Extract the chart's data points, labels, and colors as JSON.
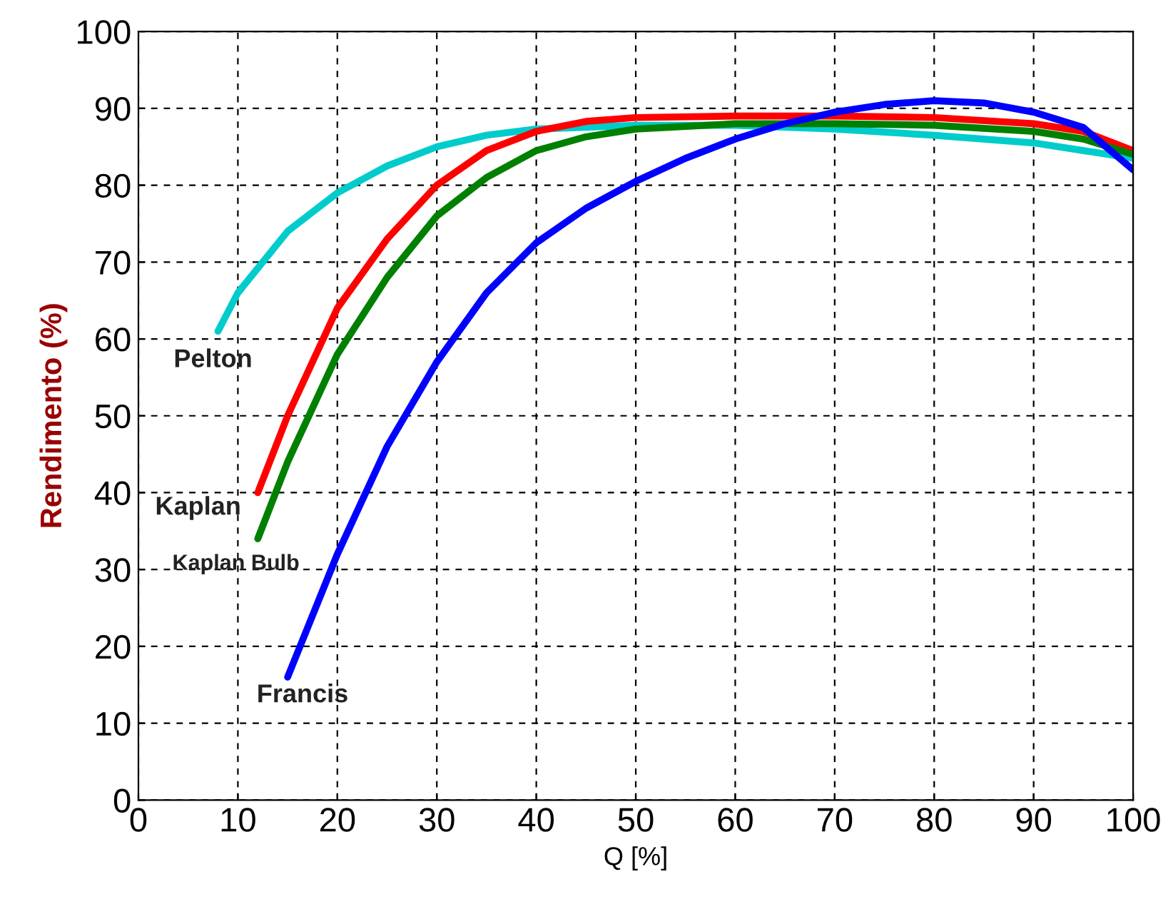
{
  "chart_data": {
    "type": "line",
    "xlabel": "Q [%]",
    "ylabel": "Rendimento (%)",
    "xlim": [
      0,
      100
    ],
    "ylim": [
      0,
      100
    ],
    "xticks": [
      0,
      10,
      20,
      30,
      40,
      50,
      60,
      70,
      80,
      90,
      100
    ],
    "yticks": [
      0,
      10,
      20,
      30,
      40,
      50,
      60,
      70,
      80,
      90,
      100
    ],
    "grid": true,
    "legend": false,
    "line_style": "solid",
    "marker": "none",
    "series": [
      {
        "name": "Pelton",
        "color": "#00cccc",
        "x": [
          8,
          10,
          15,
          20,
          25,
          30,
          35,
          40,
          50,
          60,
          70,
          80,
          90,
          100
        ],
        "values": [
          61,
          66,
          74,
          79,
          82.5,
          85,
          86.5,
          87.3,
          87.8,
          87.8,
          87.3,
          86.5,
          85.5,
          83.5
        ]
      },
      {
        "name": "Kaplan",
        "color": "#ff0000",
        "x": [
          12,
          15,
          20,
          25,
          30,
          35,
          40,
          45,
          50,
          60,
          70,
          80,
          90,
          95,
          100
        ],
        "values": [
          40,
          50,
          64,
          73,
          80,
          84.5,
          87,
          88.3,
          88.8,
          89,
          89,
          88.8,
          88,
          87,
          84.5
        ]
      },
      {
        "name": "Kaplan Bulb",
        "color": "#008000",
        "x": [
          12,
          15,
          20,
          25,
          30,
          35,
          40,
          45,
          50,
          60,
          70,
          80,
          90,
          95,
          100
        ],
        "values": [
          34,
          44,
          58,
          68,
          76,
          81,
          84.5,
          86.3,
          87.3,
          88,
          88,
          87.8,
          87,
          86,
          84
        ]
      },
      {
        "name": "Francis",
        "color": "#0000ff",
        "x": [
          15,
          20,
          25,
          30,
          35,
          40,
          45,
          50,
          55,
          60,
          65,
          70,
          75,
          80,
          85,
          90,
          95,
          100
        ],
        "values": [
          16,
          32,
          46,
          57,
          66,
          72.5,
          77,
          80.5,
          83.5,
          86,
          88,
          89.5,
          90.5,
          91,
          90.7,
          89.5,
          87.5,
          82
        ]
      }
    ]
  }
}
